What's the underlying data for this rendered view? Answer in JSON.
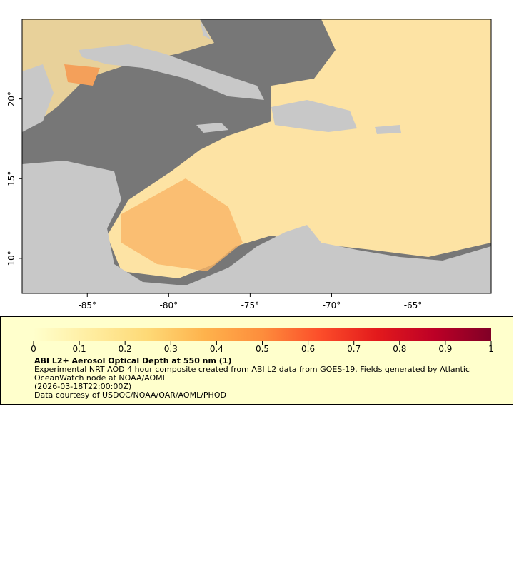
{
  "map": {
    "xlim": [
      -89,
      -60.2
    ],
    "ylim": [
      7.8,
      25
    ],
    "lat_ticks": [
      {
        "value": 20,
        "label": "20°"
      },
      {
        "value": 15,
        "label": "15°"
      },
      {
        "value": 10,
        "label": "10°"
      }
    ],
    "lon_ticks": [
      {
        "value": -85,
        "label": "-85°"
      },
      {
        "value": -80,
        "label": "-80°"
      },
      {
        "value": -75,
        "label": "-75°"
      },
      {
        "value": -70,
        "label": "-70°"
      },
      {
        "value": -65,
        "label": "-65°"
      }
    ]
  },
  "colorbar": {
    "range": [
      0,
      1
    ],
    "ticks": [
      0,
      0.1,
      0.2,
      0.3,
      0.4,
      0.5,
      0.6,
      0.7,
      0.8,
      0.9,
      1
    ],
    "colors": [
      "#ffffcc",
      "#ffeda0",
      "#fed976",
      "#feb24c",
      "#fd8d3c",
      "#fc4e2a",
      "#e31a1c",
      "#bd0026",
      "#800026"
    ]
  },
  "caption": {
    "title": "ABI L2+ Aerosol Optical Depth at 550 nm (1)",
    "description": "Experimental NRT AOD 4 hour composite created from ABI L2 data from GOES-19. Fields generated by Atlantic OceanWatch node at NOAA/AOML",
    "timestamp": "(2026-03-18T22:00:00Z)",
    "credit": "Data courtesy of USDOC/NOAA/OAR/AOML/PHOD"
  }
}
